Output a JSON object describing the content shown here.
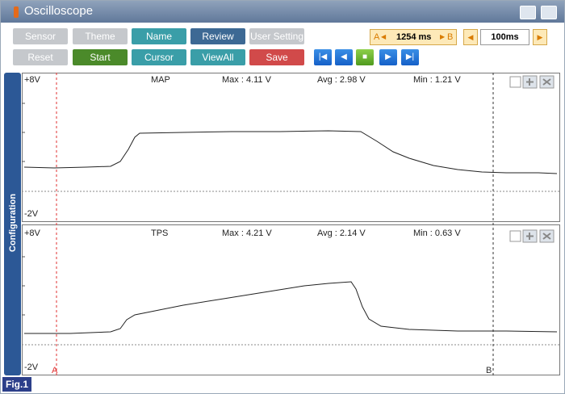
{
  "window": {
    "title": "Oscilloscope"
  },
  "toolbar": {
    "row1": [
      "Sensor",
      "Theme",
      "Name",
      "Review",
      "User Setting"
    ],
    "row2": [
      "Reset",
      "Start",
      "Cursor",
      "ViewAll",
      "Save"
    ]
  },
  "cursor_time": {
    "a_label": "A",
    "value": "1254 ms",
    "b_label": "B"
  },
  "time_div": "100ms",
  "side_tab": "Configuration",
  "channels": [
    {
      "top": "+8V",
      "name": "MAP",
      "max": "Max : 4.11 V",
      "avg": "Avg : 2.98 V",
      "min": "Min : 1.21 V",
      "bottom": "-2V"
    },
    {
      "top": "+8V",
      "name": "TPS",
      "max": "Max : 4.21 V",
      "avg": "Avg : 2.14 V",
      "min": "Min : 0.63 V",
      "bottom": "-2V"
    }
  ],
  "cursors": {
    "a": "A",
    "b": "B"
  },
  "figure_label": "Fig.1"
}
